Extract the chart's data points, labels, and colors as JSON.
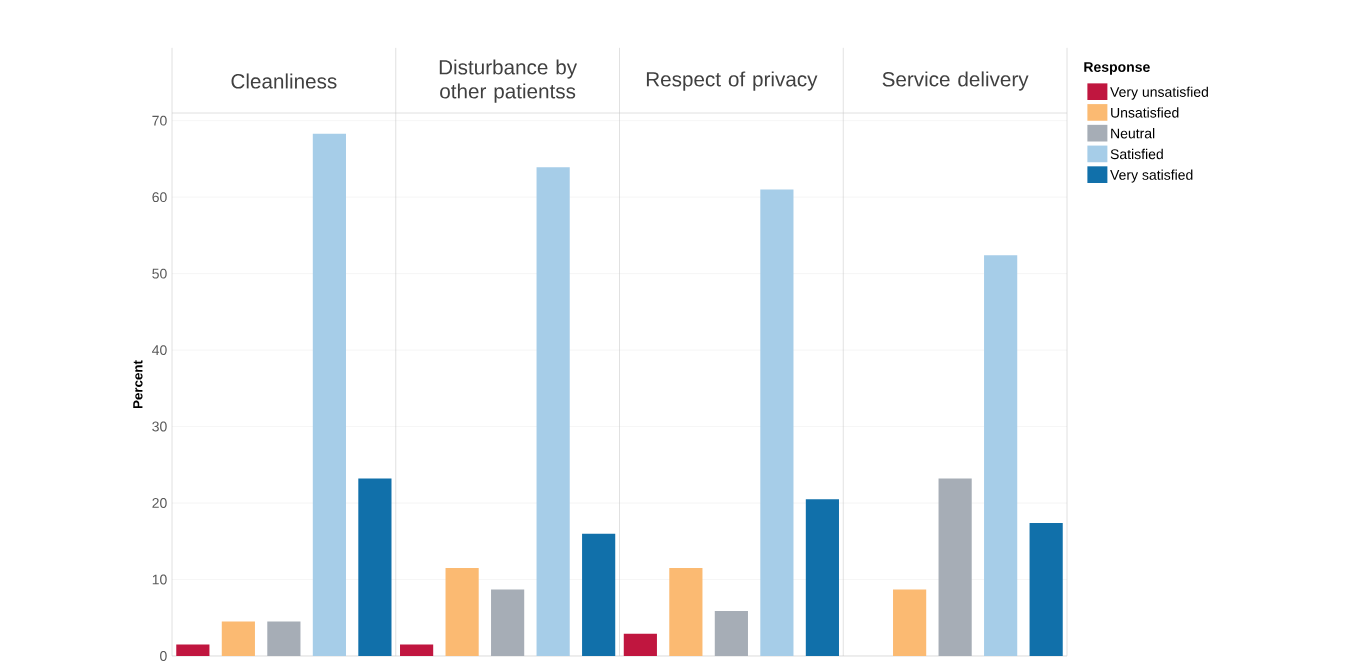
{
  "chart_data": {
    "type": "bar",
    "ylabel": "Percent",
    "legend_title": "Response",
    "legend": "top right",
    "grid": "y",
    "categories": [
      "Cleanliness",
      "Disturbance by other patientss",
      "Respect of privacy",
      "Service delivery"
    ],
    "ylim": [
      0,
      71
    ],
    "yticks": [
      0,
      10,
      20,
      30,
      40,
      50,
      60,
      70
    ],
    "series": [
      {
        "name": "Very unsatisfied",
        "color": "#c0163f",
        "values": [
          1.5,
          1.5,
          2.9,
          null
        ]
      },
      {
        "name": "Unsatisfied",
        "color": "#fbba72",
        "values": [
          4.5,
          11.5,
          11.5,
          8.7
        ]
      },
      {
        "name": "Neutral",
        "color": "#a6adb6",
        "values": [
          4.5,
          8.7,
          5.9,
          23.2
        ]
      },
      {
        "name": "Satisfied",
        "color": "#a6cde8",
        "values": [
          68.3,
          63.9,
          61,
          52.4
        ]
      },
      {
        "name": "Very satisfied",
        "color": "#1170aa",
        "values": [
          23.2,
          16,
          20.5,
          17.4
        ]
      }
    ]
  }
}
